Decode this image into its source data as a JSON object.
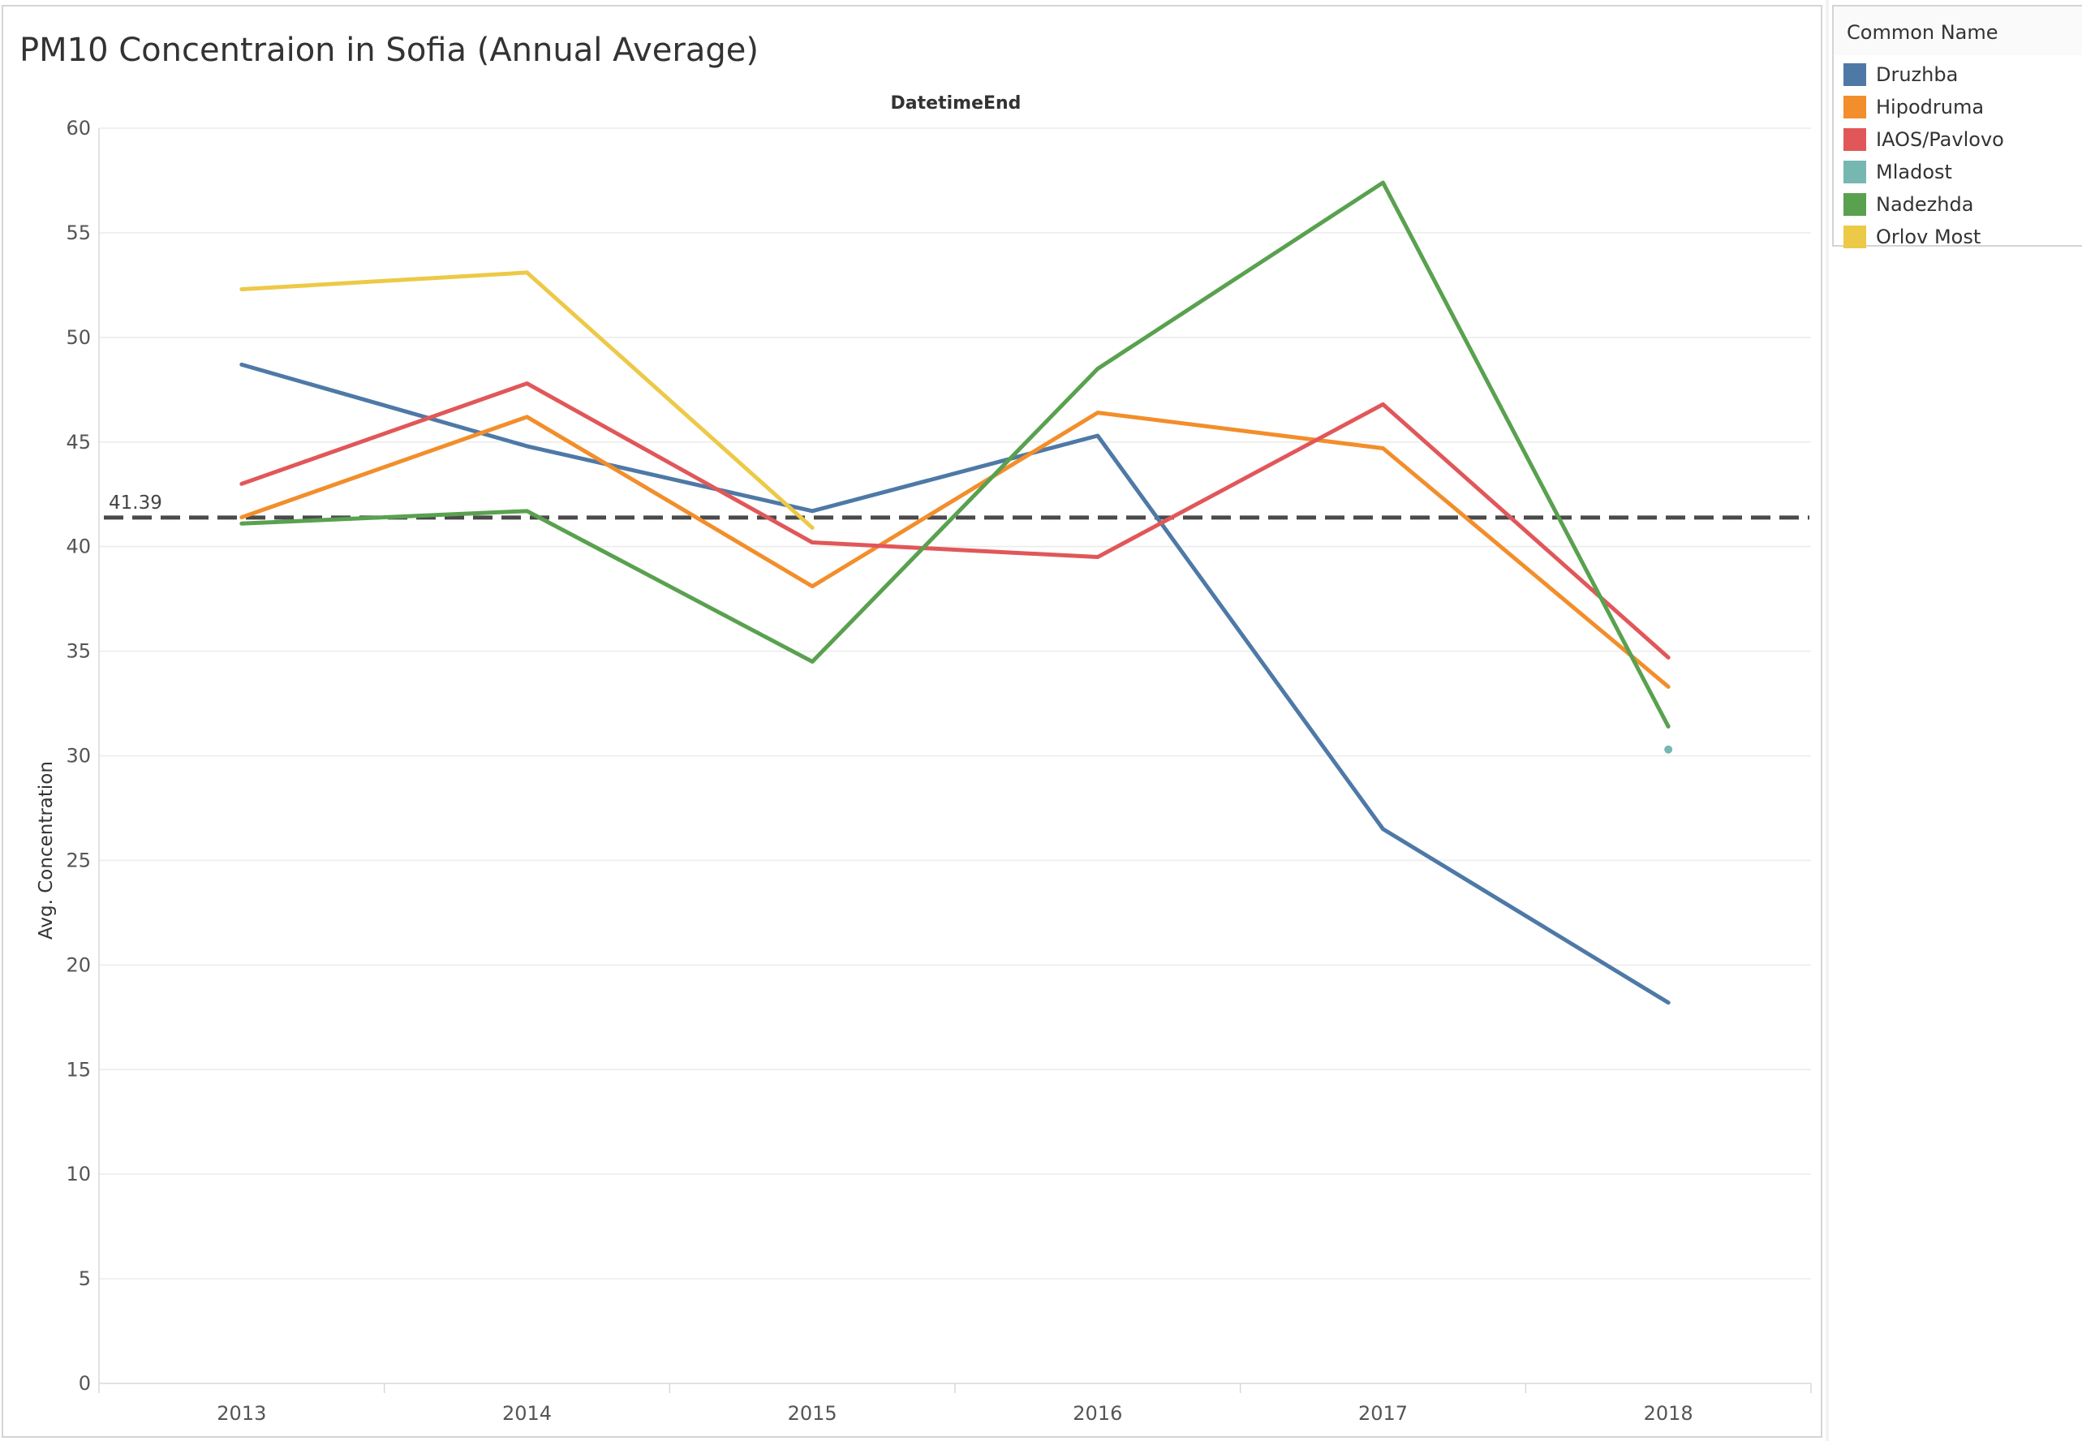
{
  "chart_data": {
    "type": "line",
    "title": "PM10 Concentraion in Sofia (Annual Average)",
    "column_header": "DatetimeEnd",
    "ylabel": "Avg. Concentration",
    "ylim": [
      0,
      60
    ],
    "yticks": [
      0,
      5,
      10,
      15,
      20,
      25,
      30,
      35,
      40,
      45,
      50,
      55,
      60
    ],
    "x": [
      "2013",
      "2014",
      "2015",
      "2016",
      "2017",
      "2018"
    ],
    "grid": true,
    "reference_line": {
      "value": 41.39,
      "label": "41.39",
      "style": "dashed"
    },
    "legend": {
      "title": "Common Name",
      "position": "top-right"
    },
    "series": [
      {
        "name": "Druzhba",
        "color": "#4e79a7",
        "values": [
          48.7,
          44.8,
          41.7,
          45.3,
          26.5,
          18.2
        ]
      },
      {
        "name": "Hipodruma",
        "color": "#f28e2b",
        "values": [
          41.4,
          46.2,
          38.1,
          46.4,
          44.7,
          33.3
        ]
      },
      {
        "name": "IAOS/Pavlovo",
        "color": "#e15759",
        "values": [
          43.0,
          47.8,
          40.2,
          39.5,
          46.8,
          34.7
        ]
      },
      {
        "name": "Mladost",
        "color": "#76b7b2",
        "values": [
          null,
          null,
          null,
          null,
          null,
          30.3
        ]
      },
      {
        "name": "Nadezhda",
        "color": "#59a14f",
        "values": [
          41.1,
          41.7,
          34.5,
          48.5,
          57.4,
          31.4
        ]
      },
      {
        "name": "Orlov Most",
        "color": "#edc948",
        "values": [
          52.3,
          53.1,
          40.9,
          null,
          null,
          null
        ]
      }
    ]
  }
}
